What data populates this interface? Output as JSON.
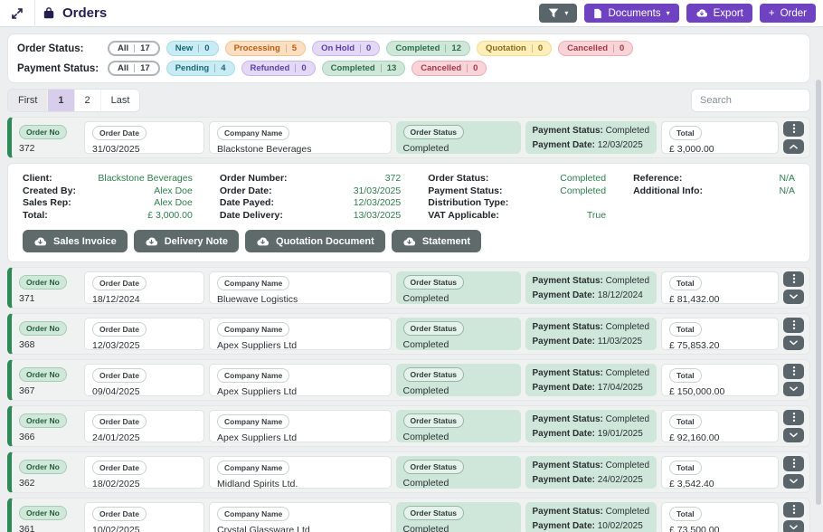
{
  "header": {
    "title": "Orders",
    "documents_label": "Documents",
    "export_label": "Export",
    "order_label": "Order"
  },
  "filters": {
    "order_status_label": "Order Status:",
    "payment_status_label": "Payment Status:",
    "order_status": [
      {
        "label": "All",
        "count": "17",
        "variant": "all"
      },
      {
        "label": "New",
        "count": "0",
        "variant": "cyan"
      },
      {
        "label": "Processing",
        "count": "5",
        "variant": "orange"
      },
      {
        "label": "On Hold",
        "count": "0",
        "variant": "purple"
      },
      {
        "label": "Completed",
        "count": "12",
        "variant": "green"
      },
      {
        "label": "Quotation",
        "count": "0",
        "variant": "yellow"
      },
      {
        "label": "Cancelled",
        "count": "0",
        "variant": "red"
      }
    ],
    "payment_status": [
      {
        "label": "All",
        "count": "17",
        "variant": "all"
      },
      {
        "label": "Pending",
        "count": "4",
        "variant": "cyan"
      },
      {
        "label": "Refunded",
        "count": "0",
        "variant": "purple"
      },
      {
        "label": "Completed",
        "count": "13",
        "variant": "green"
      },
      {
        "label": "Cancelled",
        "count": "0",
        "variant": "red"
      }
    ]
  },
  "pagination": {
    "items": [
      "First",
      "1",
      "2",
      "Last"
    ],
    "active": "1"
  },
  "search": {
    "placeholder": "Search"
  },
  "list": {
    "labels": {
      "order_no": "Order No",
      "order_date": "Order Date",
      "company": "Company Name",
      "order_status": "Order Status",
      "payment_status": "Payment Status:",
      "payment_date": "Payment Date:",
      "total": "Total"
    },
    "orders": [
      {
        "order_no": "372",
        "order_date": "31/03/2025",
        "company": "Blackstone Beverages",
        "order_status": "Completed",
        "payment_status": "Completed",
        "payment_date": "12/03/2025",
        "total": "£ 3,000.00",
        "expanded": true
      },
      {
        "order_no": "371",
        "order_date": "18/12/2024",
        "company": "Bluewave Logistics",
        "order_status": "Completed",
        "payment_status": "Completed",
        "payment_date": "18/12/2024",
        "total": "£ 81,432.00",
        "expanded": false
      },
      {
        "order_no": "368",
        "order_date": "12/03/2025",
        "company": "Apex Suppliers Ltd",
        "order_status": "Completed",
        "payment_status": "Completed",
        "payment_date": "11/03/2025",
        "total": "£ 75,853.20",
        "expanded": false
      },
      {
        "order_no": "367",
        "order_date": "09/04/2025",
        "company": "Apex Suppliers Ltd",
        "order_status": "Completed",
        "payment_status": "Completed",
        "payment_date": "17/04/2025",
        "total": "£ 150,000.00",
        "expanded": false
      },
      {
        "order_no": "366",
        "order_date": "24/01/2025",
        "company": "Apex Suppliers Ltd",
        "order_status": "Completed",
        "payment_status": "Completed",
        "payment_date": "19/01/2025",
        "total": "£ 92,160.00",
        "expanded": false
      },
      {
        "order_no": "362",
        "order_date": "18/02/2025",
        "company": "Midland Spirits Ltd.",
        "order_status": "Completed",
        "payment_status": "Completed",
        "payment_date": "24/02/2025",
        "total": "£ 3,542.40",
        "expanded": false
      },
      {
        "order_no": "361",
        "order_date": "10/02/2025",
        "company": "Crystal Glassware Ltd",
        "order_status": "Completed",
        "payment_status": "Completed",
        "payment_date": "10/02/2025",
        "total": "£ 73,500.00",
        "expanded": false
      }
    ]
  },
  "expanded_detail": {
    "order_no": "372",
    "groups": [
      [
        {
          "label": "Client:",
          "value": "Blackstone Beverages"
        },
        {
          "label": "Created By:",
          "value": "Alex Doe"
        },
        {
          "label": "Sales Rep:",
          "value": "Alex Doe"
        },
        {
          "label": "Total:",
          "value": "£ 3,000.00"
        }
      ],
      [
        {
          "label": "Order Number:",
          "value": "372"
        },
        {
          "label": "Order Date:",
          "value": "31/03/2025"
        },
        {
          "label": "Date Payed:",
          "value": "12/03/2025"
        },
        {
          "label": "Date Delivery:",
          "value": "13/03/2025"
        }
      ],
      [
        {
          "label": "Order Status:",
          "value": "Completed"
        },
        {
          "label": "Payment Status:",
          "value": "Completed"
        },
        {
          "label": "Distribution Type:",
          "value": ""
        },
        {
          "label": "VAT Applicable:",
          "value": "True"
        }
      ],
      [
        {
          "label": "Reference:",
          "value": "N/A"
        },
        {
          "label": "Additional Info:",
          "value": "N/A"
        }
      ]
    ],
    "documents": [
      "Sales Invoice",
      "Delivery Note",
      "Quotation Document",
      "Statement"
    ]
  },
  "colors": {
    "brand_navy": "#241e4e",
    "accent_purple": "#6f42c1",
    "accent_green": "#2d8a56",
    "cell_green_bg": "#cfe7da",
    "button_slate": "#5a646b"
  }
}
